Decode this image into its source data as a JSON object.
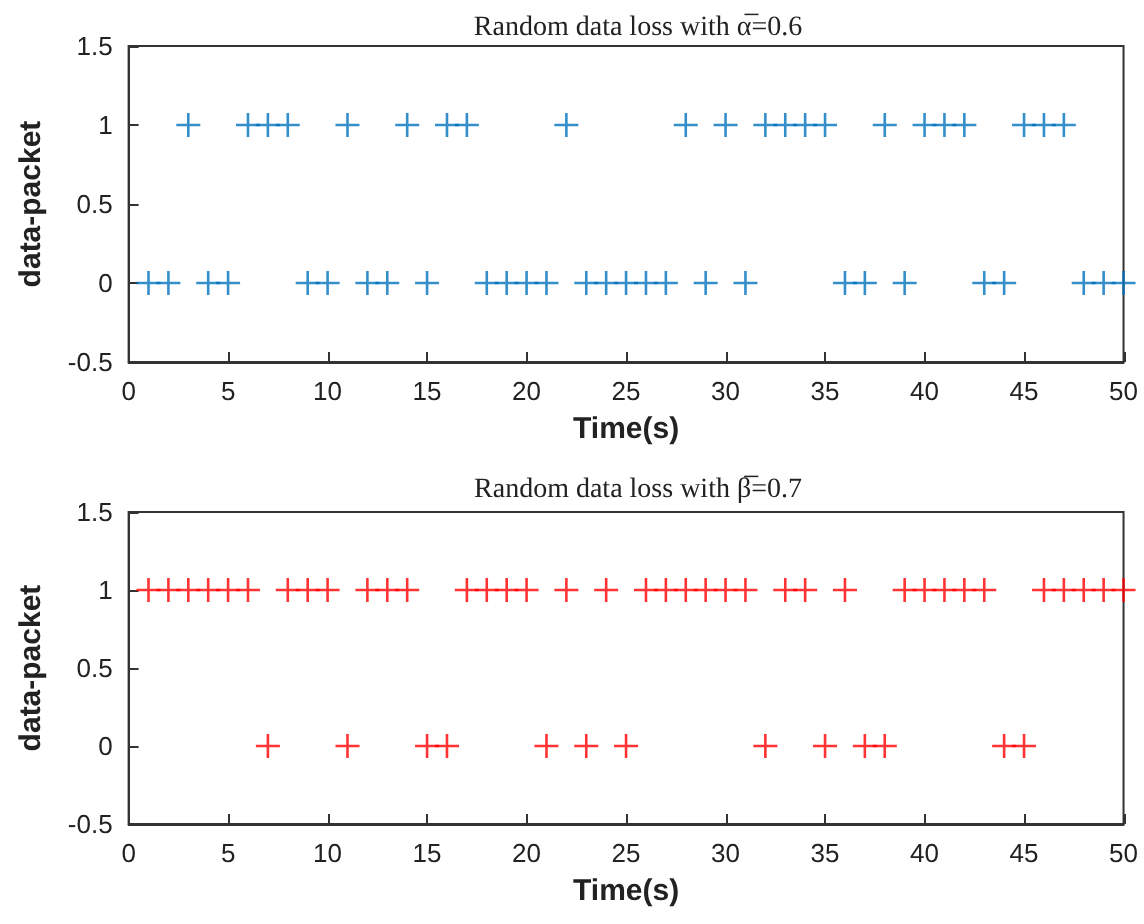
{
  "chart_data": [
    {
      "type": "scatter",
      "title": "Random data loss with α̅=0.6",
      "xlabel": "Time(s)",
      "ylabel": "data-packet",
      "marker": "cross",
      "grid": false,
      "xlim": [
        0,
        50
      ],
      "xticks": [
        0,
        5,
        10,
        15,
        20,
        25,
        30,
        35,
        40,
        45,
        50
      ],
      "ylim": [
        -0.5,
        1.5
      ],
      "yticks": [
        -0.5,
        0,
        0.5,
        1,
        1.5
      ],
      "series": [
        {
          "color": "#0072bd",
          "x": [
            1,
            2,
            3,
            4,
            5,
            6,
            7,
            8,
            9,
            10,
            11,
            12,
            13,
            14,
            15,
            16,
            17,
            18,
            19,
            20,
            21,
            22,
            23,
            24,
            25,
            26,
            27,
            28,
            29,
            30,
            31,
            32,
            33,
            34,
            35,
            36,
            37,
            38,
            39,
            40,
            41,
            42,
            43,
            44,
            45,
            46,
            47,
            48,
            49,
            50
          ],
          "values": [
            0,
            0,
            1,
            0,
            0,
            1,
            1,
            1,
            0,
            0,
            1,
            0,
            0,
            1,
            0,
            1,
            1,
            0,
            0,
            0,
            0,
            1,
            0,
            0,
            0,
            0,
            0,
            1,
            0,
            1,
            0,
            1,
            1,
            1,
            1,
            0,
            0,
            1,
            0,
            1,
            1,
            1,
            0,
            0,
            1,
            1,
            1,
            0,
            0,
            0
          ]
        }
      ]
    },
    {
      "type": "scatter",
      "title": "Random data loss with β̅=0.7",
      "xlabel": "Time(s)",
      "ylabel": "data-packet",
      "marker": "cross",
      "grid": false,
      "xlim": [
        0,
        50
      ],
      "xticks": [
        0,
        5,
        10,
        15,
        20,
        25,
        30,
        35,
        40,
        45,
        50
      ],
      "ylim": [
        -0.5,
        1.5
      ],
      "yticks": [
        -0.5,
        0,
        0.5,
        1,
        1.5
      ],
      "series": [
        {
          "color": "#ff0000",
          "x": [
            1,
            2,
            3,
            4,
            5,
            6,
            7,
            8,
            9,
            10,
            11,
            12,
            13,
            14,
            15,
            16,
            17,
            18,
            19,
            20,
            21,
            22,
            23,
            24,
            25,
            26,
            27,
            28,
            29,
            30,
            31,
            32,
            33,
            34,
            35,
            36,
            37,
            38,
            39,
            40,
            41,
            42,
            43,
            44,
            45,
            46,
            47,
            48,
            49,
            50
          ],
          "values": [
            1,
            1,
            1,
            1,
            1,
            1,
            0,
            1,
            1,
            1,
            0,
            1,
            1,
            1,
            0,
            0,
            1,
            1,
            1,
            1,
            0,
            1,
            0,
            1,
            0,
            1,
            1,
            1,
            1,
            1,
            1,
            0,
            1,
            1,
            0,
            1,
            0,
            0,
            1,
            1,
            1,
            1,
            1,
            0,
            0,
            1,
            1,
            1,
            1,
            1
          ]
        }
      ]
    }
  ]
}
